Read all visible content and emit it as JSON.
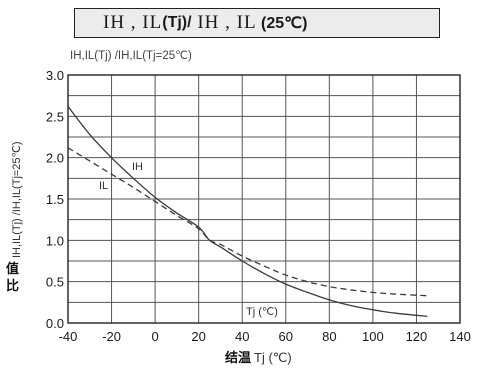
{
  "title": {
    "part1": "IH , IL",
    "part2": "(Tj)/",
    "part3": " IH , IL",
    "part4": " (25℃)"
  },
  "chart_data": {
    "type": "line",
    "ylabel_top": "IH,IL(Tj) /IH,IL(Tj=25℃)",
    "ylabel_side_text": "IH,IL(Tj) /IH,IL(Tj=25℃)",
    "ylabel_side_cjk_1": "值",
    "ylabel_side_cjk_2": "比",
    "xlabel_cjk": "结温",
    "xlabel_suffix": " Tj (℃)",
    "inner_axis_label": "Tj (℃)",
    "xlim": [
      -40,
      140
    ],
    "ylim": [
      0.0,
      3.0
    ],
    "xticks": [
      "-40",
      "-20",
      "0",
      "20",
      "40",
      "60",
      "80",
      "100",
      "120",
      "140"
    ],
    "yticks": [
      "0.0",
      "0.5",
      "1.0",
      "1.5",
      "2.0",
      "2.5",
      "3.0"
    ],
    "grid": true,
    "series": [
      {
        "name": "IH",
        "style": "solid",
        "color": "#3a3a3a",
        "x": [
          -40,
          -30,
          -20,
          -10,
          0,
          10,
          20,
          25,
          30,
          40,
          50,
          60,
          70,
          80,
          90,
          100,
          110,
          125
        ],
        "y": [
          2.62,
          2.28,
          2.0,
          1.75,
          1.52,
          1.33,
          1.16,
          1.0,
          0.92,
          0.75,
          0.6,
          0.47,
          0.37,
          0.28,
          0.21,
          0.16,
          0.12,
          0.08
        ]
      },
      {
        "name": "IL",
        "style": "dashed",
        "color": "#3a3a3a",
        "x": [
          -40,
          -30,
          -20,
          -10,
          0,
          10,
          20,
          25,
          30,
          40,
          50,
          60,
          70,
          80,
          90,
          100,
          110,
          125
        ],
        "y": [
          2.12,
          1.96,
          1.8,
          1.64,
          1.47,
          1.3,
          1.14,
          1.0,
          0.95,
          0.81,
          0.69,
          0.58,
          0.5,
          0.44,
          0.4,
          0.37,
          0.35,
          0.33
        ]
      }
    ],
    "series_labels": {
      "IH": "IH",
      "IL": "IL"
    }
  }
}
